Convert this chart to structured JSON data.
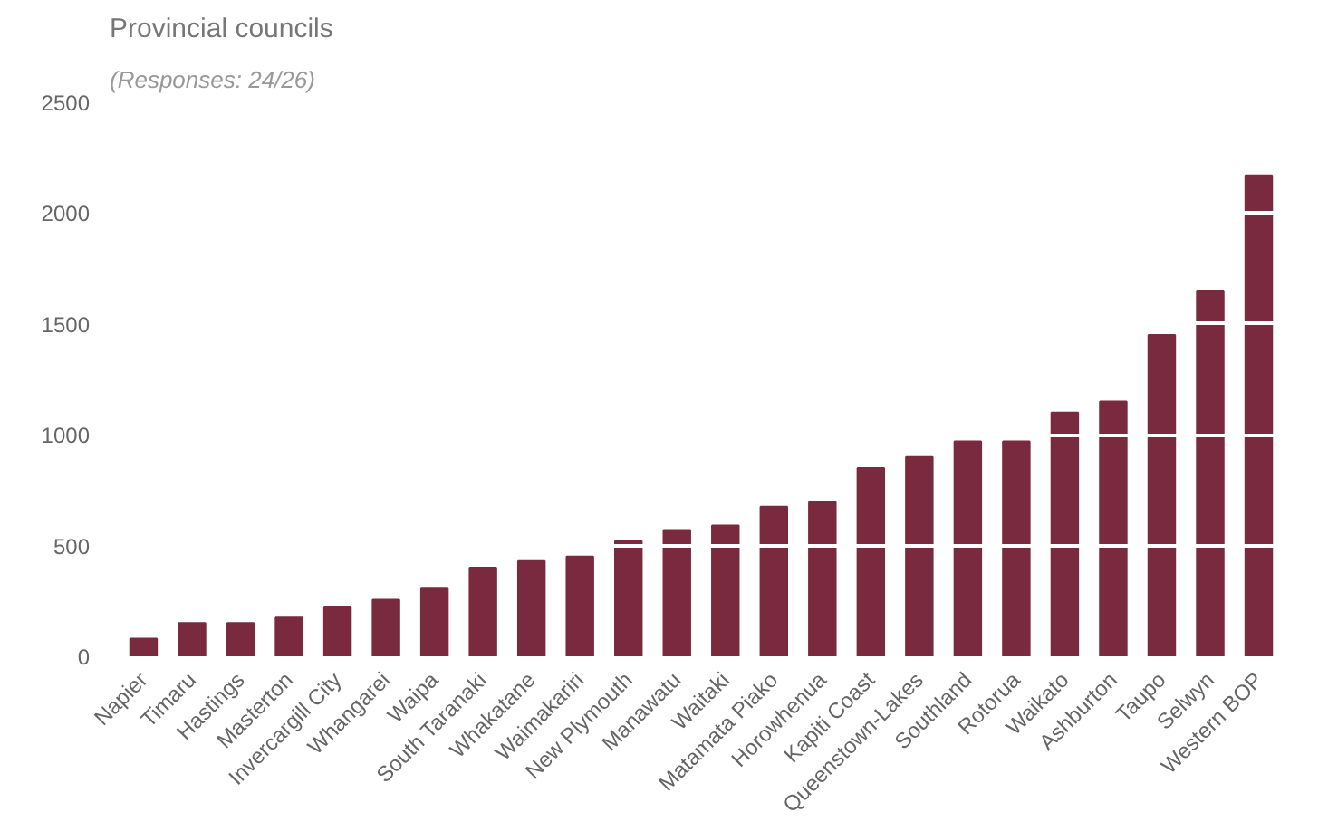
{
  "chart_data": {
    "type": "bar",
    "title": "Provincial councils",
    "subtitle": "(Responses: 24/26)",
    "categories": [
      "Napier",
      "Timaru",
      "Hastings",
      "Masterton",
      "Invercargill City",
      "Whangarei",
      "Waipa",
      "South Taranaki",
      "Whakatane",
      "Waimakariri",
      "New Plymouth",
      "Manawatu",
      "Waitaki",
      "Matamata Piako",
      "Horowhenua",
      "Kapiti Coast",
      "Queenstown-Lakes",
      "Southland",
      "Rotorua",
      "Waikato",
      "Ashburton",
      "Taupo",
      "Selwyn",
      "Western BOP"
    ],
    "values": [
      80,
      150,
      150,
      175,
      225,
      255,
      305,
      400,
      430,
      450,
      520,
      570,
      590,
      675,
      695,
      850,
      900,
      970,
      970,
      1100,
      1150,
      1450,
      1650,
      2170
    ],
    "color": "#7a2a3e",
    "ylim": [
      0,
      2500
    ],
    "yticks": [
      0,
      500,
      1000,
      1500,
      2000,
      2500
    ],
    "grid": "y"
  }
}
